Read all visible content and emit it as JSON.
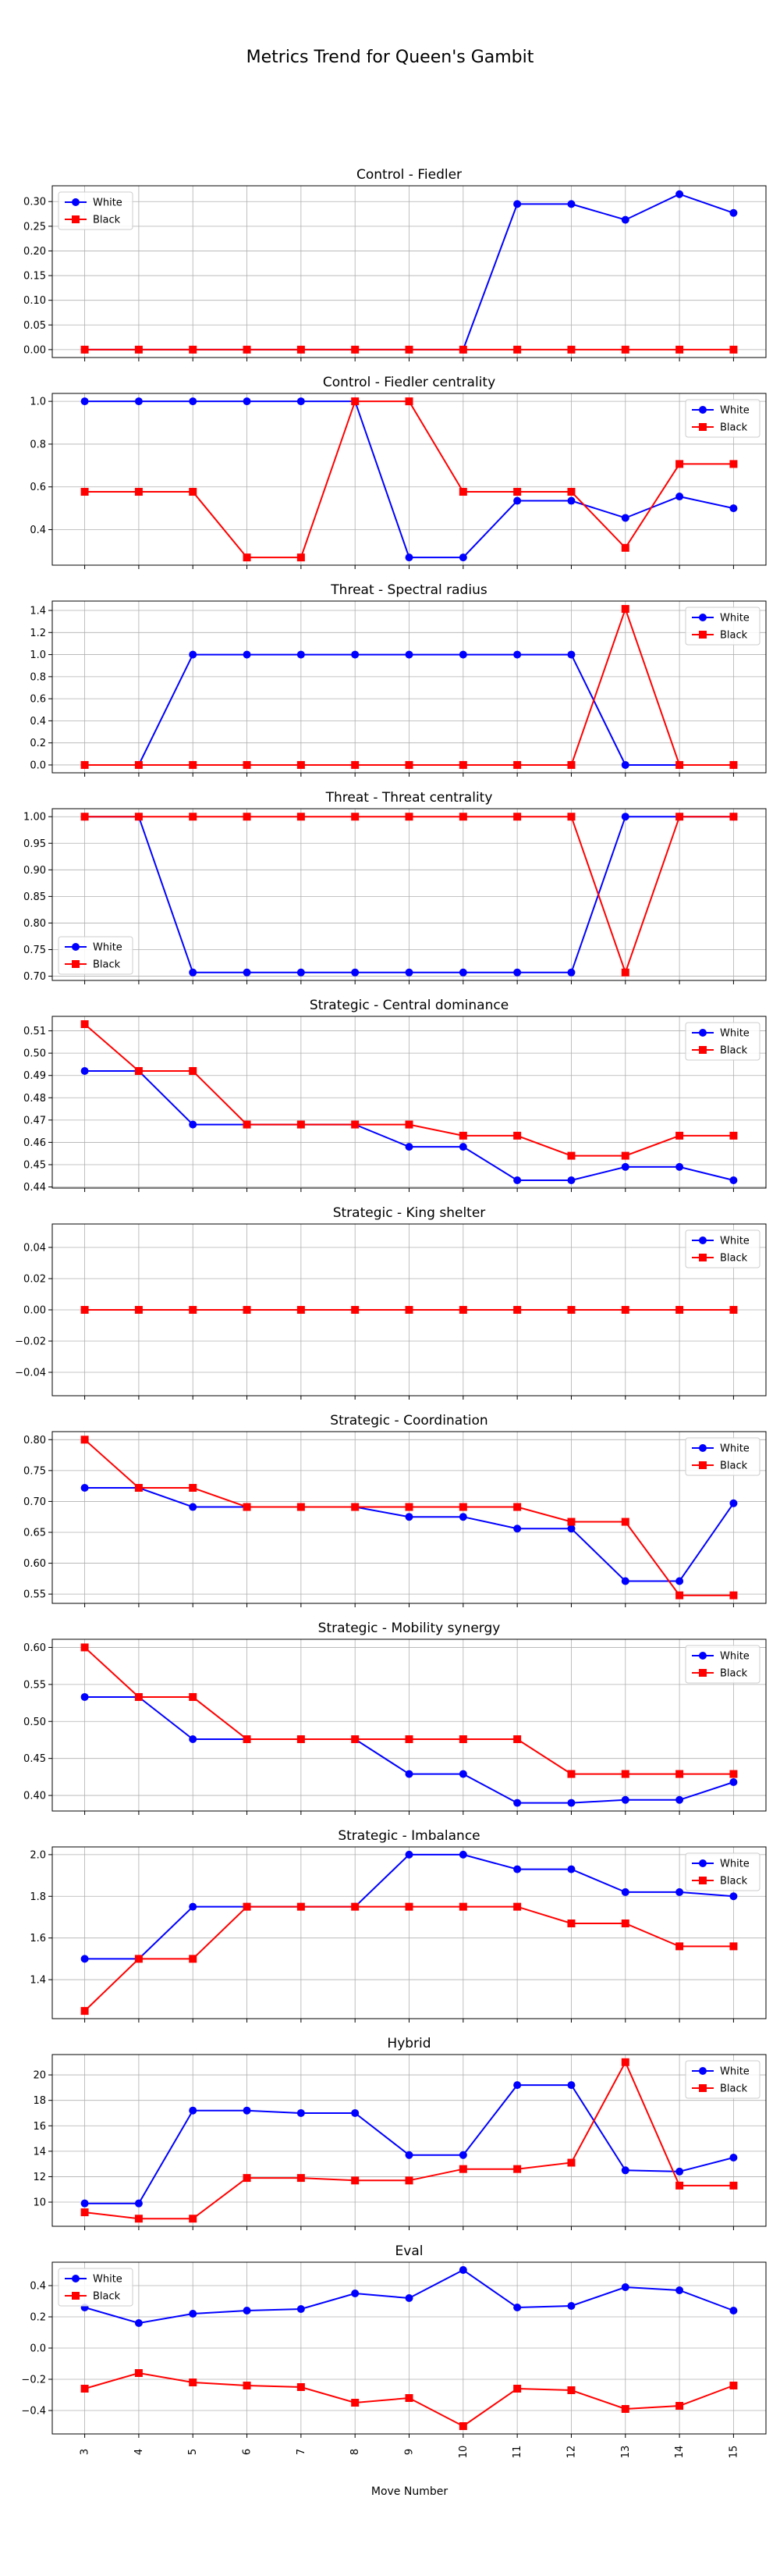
{
  "figure": {
    "title": "Metrics Trend for Queen's Gambit",
    "xlabel": "Move Number"
  },
  "colors": {
    "white_series": "#0000ff",
    "black_series": "#ff0000",
    "grid": "#b0b0b0"
  },
  "chart_data": [
    {
      "type": "line",
      "title": "Control - Fiedler",
      "x": [
        3,
        4,
        5,
        6,
        7,
        8,
        9,
        10,
        11,
        12,
        13,
        14,
        15
      ],
      "series": [
        {
          "name": "White",
          "marker": "circle",
          "values": [
            0,
            0,
            0,
            0,
            0,
            0,
            0,
            0,
            0.295,
            0.295,
            0.263,
            0.315,
            0.277
          ]
        },
        {
          "name": "Black",
          "marker": "square",
          "values": [
            0,
            0,
            0,
            0,
            0,
            0,
            0,
            0,
            0,
            0,
            0,
            0,
            0
          ]
        }
      ],
      "ylim": [
        -0.016,
        0.332
      ],
      "yticks": [
        0.0,
        0.05,
        0.1,
        0.15,
        0.2,
        0.25,
        0.3
      ],
      "ytick_labels": [
        "0.00",
        "0.05",
        "0.10",
        "0.15",
        "0.20",
        "0.25",
        "0.30"
      ],
      "legend": "upper left",
      "grid": true
    },
    {
      "type": "line",
      "title": "Control - Fiedler centrality",
      "x": [
        3,
        4,
        5,
        6,
        7,
        8,
        9,
        10,
        11,
        12,
        13,
        14,
        15
      ],
      "series": [
        {
          "name": "White",
          "marker": "circle",
          "values": [
            1,
            1,
            1,
            1,
            1,
            1,
            0.27,
            0.27,
            0.535,
            0.535,
            0.455,
            0.555,
            0.5
          ]
        },
        {
          "name": "Black",
          "marker": "square",
          "values": [
            0.577,
            0.577,
            0.577,
            0.27,
            0.27,
            1,
            1,
            0.577,
            0.577,
            0.577,
            0.315,
            0.707,
            0.707
          ]
        }
      ],
      "ylim": [
        0.234,
        1.037
      ],
      "yticks": [
        0.4,
        0.6,
        0.8,
        1.0
      ],
      "ytick_labels": [
        "0.4",
        "0.6",
        "0.8",
        "1.0"
      ],
      "legend": "upper right",
      "grid": true
    },
    {
      "type": "line",
      "title": "Threat - Spectral radius",
      "x": [
        3,
        4,
        5,
        6,
        7,
        8,
        9,
        10,
        11,
        12,
        13,
        14,
        15
      ],
      "series": [
        {
          "name": "White",
          "marker": "circle",
          "values": [
            0,
            0,
            1,
            1,
            1,
            1,
            1,
            1,
            1,
            1,
            0,
            0,
            0
          ]
        },
        {
          "name": "Black",
          "marker": "square",
          "values": [
            0,
            0,
            0,
            0,
            0,
            0,
            0,
            0,
            0,
            0,
            1.414,
            0,
            0
          ]
        }
      ],
      "ylim": [
        -0.071,
        1.485
      ],
      "yticks": [
        0.0,
        0.2,
        0.4,
        0.6,
        0.8,
        1.0,
        1.2,
        1.4
      ],
      "ytick_labels": [
        "0.0",
        "0.2",
        "0.4",
        "0.6",
        "0.8",
        "1.0",
        "1.2",
        "1.4"
      ],
      "legend": "upper right",
      "grid": true
    },
    {
      "type": "line",
      "title": "Threat - Threat centrality",
      "x": [
        3,
        4,
        5,
        6,
        7,
        8,
        9,
        10,
        11,
        12,
        13,
        14,
        15
      ],
      "series": [
        {
          "name": "White",
          "marker": "circle",
          "values": [
            1,
            1,
            0.707,
            0.707,
            0.707,
            0.707,
            0.707,
            0.707,
            0.707,
            0.707,
            1,
            1,
            1
          ]
        },
        {
          "name": "Black",
          "marker": "square",
          "values": [
            1,
            1,
            1,
            1,
            1,
            1,
            1,
            1,
            1,
            1,
            0.707,
            1,
            1
          ]
        }
      ],
      "ylim": [
        0.692,
        1.015
      ],
      "yticks": [
        0.7,
        0.75,
        0.8,
        0.85,
        0.9,
        0.95,
        1.0
      ],
      "ytick_labels": [
        "0.70",
        "0.75",
        "0.80",
        "0.85",
        "0.90",
        "0.95",
        "1.00"
      ],
      "legend": "lower left",
      "grid": true
    },
    {
      "type": "line",
      "title": "Strategic - Central dominance",
      "x": [
        3,
        4,
        5,
        6,
        7,
        8,
        9,
        10,
        11,
        12,
        13,
        14,
        15
      ],
      "series": [
        {
          "name": "White",
          "marker": "circle",
          "values": [
            0.492,
            0.492,
            0.468,
            0.468,
            0.468,
            0.468,
            0.458,
            0.458,
            0.443,
            0.443,
            0.449,
            0.449,
            0.443
          ]
        },
        {
          "name": "Black",
          "marker": "square",
          "values": [
            0.513,
            0.492,
            0.492,
            0.468,
            0.468,
            0.468,
            0.468,
            0.463,
            0.463,
            0.454,
            0.454,
            0.463,
            0.463
          ]
        }
      ],
      "ylim": [
        0.4395,
        0.5165
      ],
      "yticks": [
        0.44,
        0.45,
        0.46,
        0.47,
        0.48,
        0.49,
        0.5,
        0.51
      ],
      "ytick_labels": [
        "0.44",
        "0.45",
        "0.46",
        "0.47",
        "0.48",
        "0.49",
        "0.50",
        "0.51"
      ],
      "legend": "upper right",
      "grid": true
    },
    {
      "type": "line",
      "title": "Strategic - King shelter",
      "x": [
        3,
        4,
        5,
        6,
        7,
        8,
        9,
        10,
        11,
        12,
        13,
        14,
        15
      ],
      "series": [
        {
          "name": "White",
          "marker": "circle",
          "values": [
            0,
            0,
            0,
            0,
            0,
            0,
            0,
            0,
            0,
            0,
            0,
            0,
            0
          ]
        },
        {
          "name": "Black",
          "marker": "square",
          "values": [
            0,
            0,
            0,
            0,
            0,
            0,
            0,
            0,
            0,
            0,
            0,
            0,
            0
          ]
        }
      ],
      "ylim": [
        -0.055,
        0.055
      ],
      "yticks": [
        -0.04,
        -0.02,
        0.0,
        0.02,
        0.04
      ],
      "ytick_labels": [
        "−0.04",
        "−0.02",
        "0.00",
        "0.02",
        "0.04"
      ],
      "legend": "upper right",
      "grid": true
    },
    {
      "type": "line",
      "title": "Strategic - Coordination",
      "x": [
        3,
        4,
        5,
        6,
        7,
        8,
        9,
        10,
        11,
        12,
        13,
        14,
        15
      ],
      "series": [
        {
          "name": "White",
          "marker": "circle",
          "values": [
            0.722,
            0.722,
            0.691,
            0.691,
            0.691,
            0.691,
            0.675,
            0.675,
            0.656,
            0.656,
            0.571,
            0.571,
            0.697
          ]
        },
        {
          "name": "Black",
          "marker": "square",
          "values": [
            0.8,
            0.722,
            0.722,
            0.691,
            0.691,
            0.691,
            0.691,
            0.691,
            0.691,
            0.667,
            0.667,
            0.548,
            0.548
          ]
        }
      ],
      "ylim": [
        0.535,
        0.813
      ],
      "yticks": [
        0.55,
        0.6,
        0.65,
        0.7,
        0.75,
        0.8
      ],
      "ytick_labels": [
        "0.55",
        "0.60",
        "0.65",
        "0.70",
        "0.75",
        "0.80"
      ],
      "legend": "upper right",
      "grid": true
    },
    {
      "type": "line",
      "title": "Strategic - Mobility synergy",
      "x": [
        3,
        4,
        5,
        6,
        7,
        8,
        9,
        10,
        11,
        12,
        13,
        14,
        15
      ],
      "series": [
        {
          "name": "White",
          "marker": "circle",
          "values": [
            0.533,
            0.533,
            0.476,
            0.476,
            0.476,
            0.476,
            0.429,
            0.429,
            0.39,
            0.39,
            0.394,
            0.394,
            0.418
          ]
        },
        {
          "name": "Black",
          "marker": "square",
          "values": [
            0.6,
            0.533,
            0.533,
            0.476,
            0.476,
            0.476,
            0.476,
            0.476,
            0.476,
            0.429,
            0.429,
            0.429,
            0.429
          ]
        }
      ],
      "ylim": [
        0.379,
        0.611
      ],
      "yticks": [
        0.4,
        0.45,
        0.5,
        0.55,
        0.6
      ],
      "ytick_labels": [
        "0.40",
        "0.45",
        "0.50",
        "0.55",
        "0.60"
      ],
      "legend": "upper right",
      "grid": true
    },
    {
      "type": "line",
      "title": "Strategic - Imbalance",
      "x": [
        3,
        4,
        5,
        6,
        7,
        8,
        9,
        10,
        11,
        12,
        13,
        14,
        15
      ],
      "series": [
        {
          "name": "White",
          "marker": "circle",
          "values": [
            1.5,
            1.5,
            1.75,
            1.75,
            1.75,
            1.75,
            2.0,
            2.0,
            1.93,
            1.93,
            1.82,
            1.82,
            1.8
          ]
        },
        {
          "name": "Black",
          "marker": "square",
          "values": [
            1.25,
            1.5,
            1.5,
            1.75,
            1.75,
            1.75,
            1.75,
            1.75,
            1.75,
            1.67,
            1.67,
            1.56,
            1.56
          ]
        }
      ],
      "ylim": [
        1.213,
        2.037
      ],
      "yticks": [
        1.4,
        1.6,
        1.8,
        2.0
      ],
      "ytick_labels": [
        "1.4",
        "1.6",
        "1.8",
        "2.0"
      ],
      "legend": "upper right",
      "grid": true
    },
    {
      "type": "line",
      "title": "Hybrid",
      "x": [
        3,
        4,
        5,
        6,
        7,
        8,
        9,
        10,
        11,
        12,
        13,
        14,
        15
      ],
      "series": [
        {
          "name": "White",
          "marker": "circle",
          "values": [
            9.9,
            9.9,
            17.2,
            17.2,
            17.0,
            17.0,
            13.7,
            13.7,
            19.2,
            19.2,
            12.5,
            12.4,
            13.5
          ]
        },
        {
          "name": "Black",
          "marker": "square",
          "values": [
            9.2,
            8.7,
            8.7,
            11.9,
            11.9,
            11.7,
            11.7,
            12.6,
            12.6,
            13.1,
            21.0,
            11.3,
            11.3
          ]
        }
      ],
      "ylim": [
        8.1,
        21.6
      ],
      "yticks": [
        10,
        12,
        14,
        16,
        18,
        20
      ],
      "ytick_labels": [
        "10",
        "12",
        "14",
        "16",
        "18",
        "20"
      ],
      "legend": "upper right",
      "grid": true
    },
    {
      "type": "line",
      "title": "Eval",
      "x": [
        3,
        4,
        5,
        6,
        7,
        8,
        9,
        10,
        11,
        12,
        13,
        14,
        15
      ],
      "series": [
        {
          "name": "White",
          "marker": "circle",
          "values": [
            0.26,
            0.16,
            0.22,
            0.24,
            0.25,
            0.35,
            0.32,
            0.5,
            0.26,
            0.27,
            0.39,
            0.37,
            0.24
          ]
        },
        {
          "name": "Black",
          "marker": "square",
          "values": [
            -0.26,
            -0.16,
            -0.22,
            -0.24,
            -0.25,
            -0.35,
            -0.32,
            -0.5,
            -0.26,
            -0.27,
            -0.39,
            -0.37,
            -0.24
          ]
        }
      ],
      "ylim": [
        -0.55,
        0.55
      ],
      "yticks": [
        -0.4,
        -0.2,
        0.0,
        0.2,
        0.4
      ],
      "ytick_labels": [
        "−0.4",
        "−0.2",
        "0.0",
        "0.2",
        "0.4"
      ],
      "legend": "upper left",
      "grid": true
    }
  ]
}
